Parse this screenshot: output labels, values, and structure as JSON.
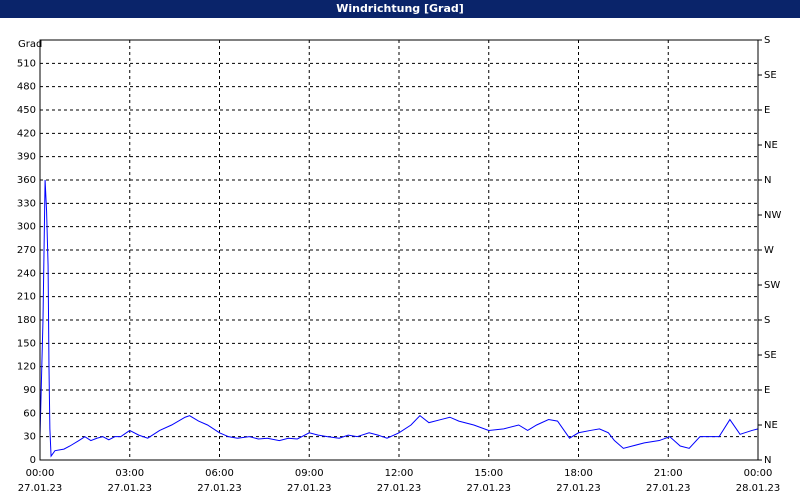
{
  "chart_data": {
    "type": "line",
    "title": "Windrichtung [Grad]",
    "y_label": "Grad",
    "x": [
      0,
      0.1,
      0.17,
      0.22,
      0.27,
      0.3,
      0.33,
      0.37,
      0.5,
      0.8,
      1.0,
      1.3,
      1.5,
      1.7,
      1.9,
      2.1,
      2.3,
      2.5,
      2.7,
      3.0,
      3.3,
      3.6,
      4.0,
      4.4,
      4.85,
      5.0,
      5.3,
      5.6,
      6.0,
      6.3,
      6.6,
      7.0,
      7.3,
      7.6,
      8.0,
      8.3,
      8.6,
      9.0,
      9.3,
      9.6,
      10.0,
      10.3,
      10.6,
      11.0,
      11.3,
      11.6,
      12.0,
      12.4,
      12.7,
      13.0,
      13.4,
      13.7,
      14.0,
      14.5,
      15.0,
      15.5,
      16.0,
      16.3,
      16.6,
      17.0,
      17.3,
      17.7,
      18.0,
      18.4,
      18.7,
      19.0,
      19.2,
      19.5,
      19.8,
      20.2,
      20.7,
      21.05,
      21.4,
      21.7,
      22.06,
      22.4,
      22.7,
      23.06,
      23.4,
      23.8,
      24.0
    ],
    "series": [
      {
        "name": "Windrichtung",
        "color": "#0000ff",
        "values": [
          30,
          180,
          360,
          320,
          250,
          120,
          40,
          5,
          12,
          14,
          18,
          25,
          30,
          25,
          28,
          30,
          26,
          30,
          30,
          38,
          32,
          28,
          38,
          45,
          55,
          57,
          50,
          45,
          35,
          30,
          28,
          30,
          27,
          28,
          25,
          28,
          27,
          35,
          32,
          30,
          28,
          32,
          30,
          35,
          32,
          28,
          35,
          45,
          57,
          48,
          52,
          55,
          50,
          45,
          38,
          40,
          45,
          38,
          45,
          52,
          50,
          28,
          35,
          38,
          40,
          35,
          25,
          15,
          18,
          22,
          25,
          30,
          18,
          15,
          30,
          30,
          30,
          52,
          33,
          38,
          40
        ]
      }
    ],
    "xlim": [
      0,
      24
    ],
    "xticks": [
      {
        "value": 0,
        "label": "00:00",
        "date": "27.01.23"
      },
      {
        "value": 3,
        "label": "03:00",
        "date": "27.01.23"
      },
      {
        "value": 6,
        "label": "06:00",
        "date": "27.01.23"
      },
      {
        "value": 9,
        "label": "09:00",
        "date": "27.01.23"
      },
      {
        "value": 12,
        "label": "12:00",
        "date": "27.01.23"
      },
      {
        "value": 15,
        "label": "15:00",
        "date": "27.01.23"
      },
      {
        "value": 18,
        "label": "18:00",
        "date": "27.01.23"
      },
      {
        "value": 21,
        "label": "21:00",
        "date": "27.01.23"
      },
      {
        "value": 24,
        "label": "00:00",
        "date": "28.01.23"
      }
    ],
    "ylim": [
      0,
      540
    ],
    "yticks": [
      0,
      30,
      60,
      90,
      120,
      150,
      180,
      210,
      240,
      270,
      300,
      330,
      360,
      390,
      420,
      450,
      480,
      510
    ],
    "y2lim": [
      0,
      540
    ],
    "y2ticks": [
      {
        "value": 0,
        "label": "N"
      },
      {
        "value": 45,
        "label": "NE"
      },
      {
        "value": 90,
        "label": "E"
      },
      {
        "value": 135,
        "label": "SE"
      },
      {
        "value": 180,
        "label": "S"
      },
      {
        "value": 225,
        "label": "SW"
      },
      {
        "value": 270,
        "label": "W"
      },
      {
        "value": 315,
        "label": "NW"
      },
      {
        "value": 360,
        "label": "N"
      },
      {
        "value": 405,
        "label": "NE"
      },
      {
        "value": 450,
        "label": "E"
      },
      {
        "value": 495,
        "label": "SE"
      },
      {
        "value": 540,
        "label": "S"
      }
    ],
    "grid": true
  }
}
